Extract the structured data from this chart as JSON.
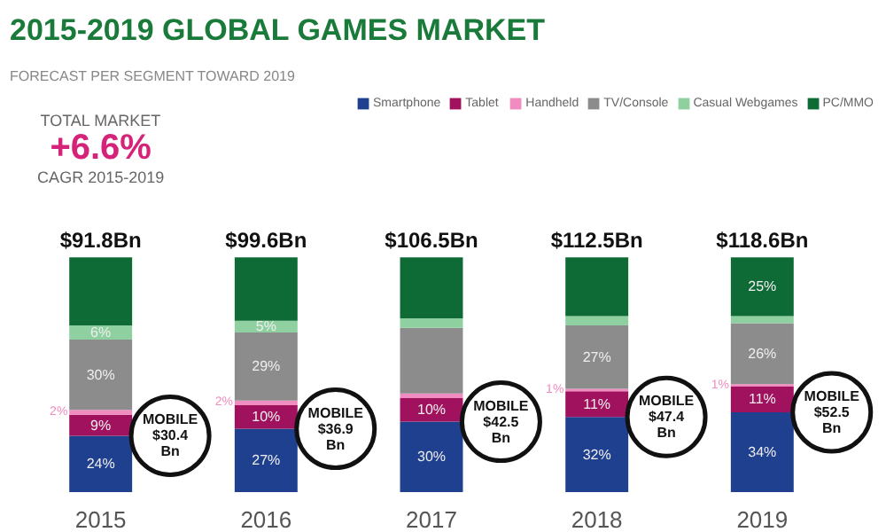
{
  "chart_data": {
    "type": "bar",
    "stacked": true,
    "title": "2015-2019 GLOBAL GAMES MARKET",
    "subtitle": "FORECAST PER SEGMENT TOWARD 2019",
    "categories": [
      "2015",
      "2016",
      "2017",
      "2018",
      "2019"
    ],
    "series": [
      {
        "name": "Smartphone",
        "color": "#1f3f8f",
        "values": [
          24,
          27,
          30,
          32,
          34
        ],
        "value_labels": [
          "24%",
          "27%",
          "30%",
          "32%",
          "34%"
        ]
      },
      {
        "name": "Tablet",
        "color": "#a0125e",
        "values": [
          9,
          10,
          10,
          11,
          11
        ],
        "value_labels": [
          "9%",
          "10%",
          "10%",
          "11%",
          "11%"
        ]
      },
      {
        "name": "Handheld",
        "color": "#f08cbf",
        "values": [
          2,
          2,
          2,
          1,
          1
        ],
        "value_labels": [
          "2%",
          "2%",
          null,
          "1%",
          "1%"
        ]
      },
      {
        "name": "TV/Console",
        "color": "#8c8c8c",
        "values": [
          30,
          29,
          28,
          27,
          26
        ],
        "value_labels": [
          "30%",
          "29%",
          null,
          "27%",
          "26%"
        ]
      },
      {
        "name": "Casual Webgames",
        "color": "#8fd0a0",
        "values": [
          6,
          5,
          4,
          4,
          3
        ],
        "value_labels": [
          "6%",
          "5%",
          null,
          null,
          null
        ]
      },
      {
        "name": "PC/MMO",
        "color": "#0f6b35",
        "values": [
          29,
          27,
          26,
          25,
          25
        ],
        "value_labels": [
          null,
          null,
          null,
          null,
          "25%"
        ]
      }
    ],
    "annotations": [
      "TOTAL MARKET",
      "+6.6%",
      "CAGR 2015-2019",
      {
        "text": "$91.8Bn",
        "x": "2015",
        "y": 100
      },
      {
        "text": "$99.6Bn",
        "x": "2016",
        "y": 100
      },
      {
        "text": "$106.5Bn",
        "x": "2017",
        "y": 100
      },
      {
        "text": "$112.5Bn",
        "x": "2018",
        "y": 100
      },
      {
        "text": "$118.6Bn",
        "x": "2019",
        "y": 100
      },
      "MOBILE\n$30.4\nBn",
      "MOBILE\n$36.9\nBn",
      "MOBILE\n$42.5\nBn",
      "MOBILE\n$47.4\nBn",
      "MOBILE\n$52.5\nBn"
    ],
    "legend": "top right",
    "grid": false
  }
}
